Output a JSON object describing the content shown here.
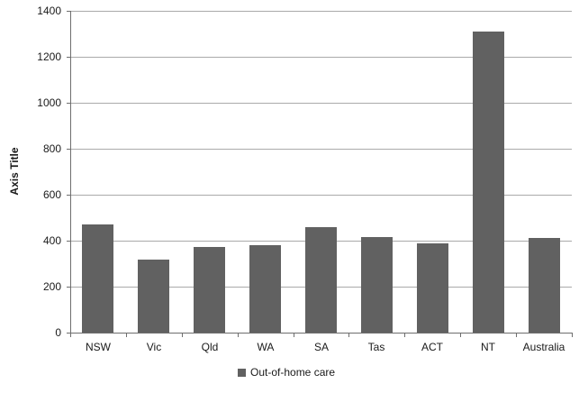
{
  "chart_data": {
    "type": "bar",
    "title": "",
    "xlabel": "",
    "ylabel": "Axis Title",
    "categories": [
      "NSW",
      "Vic",
      "Qld",
      "WA",
      "SA",
      "Tas",
      "ACT",
      "NT",
      "Australia"
    ],
    "series": [
      {
        "name": "Out-of-home care",
        "values": [
          470,
          317,
          372,
          380,
          457,
          414,
          389,
          1310,
          413
        ]
      }
    ],
    "ylim": [
      0,
      1400
    ],
    "yticks": [
      0,
      200,
      400,
      600,
      800,
      1000,
      1200,
      1400
    ],
    "grid": true,
    "legend_position": "bottom"
  },
  "colors": {
    "bar": "#616161",
    "gridline": "#aaaaaa",
    "axis": "#6e6e6e",
    "text": "#1a1a1a",
    "background": "#ffffff"
  },
  "legend": {
    "items": [
      {
        "label": "Out-of-home care",
        "color": "#616161"
      }
    ]
  }
}
